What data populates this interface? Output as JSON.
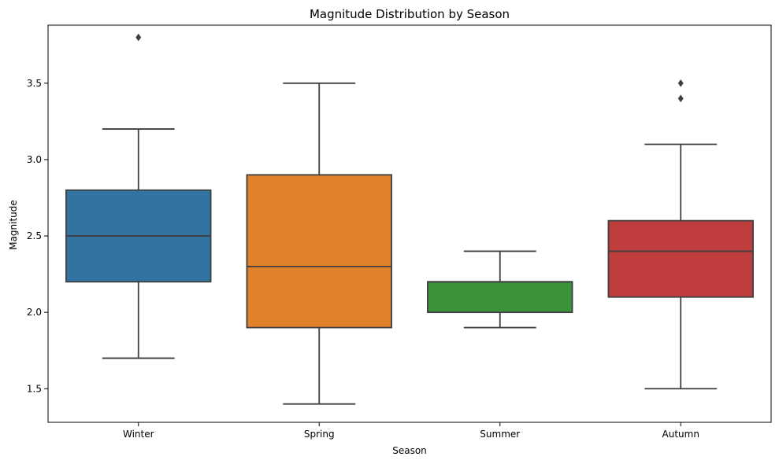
{
  "chart_data": {
    "type": "box",
    "title": "Magnitude Distribution by Season",
    "xlabel": "Season",
    "ylabel": "Magnitude",
    "ylim": [
      1.28,
      3.88
    ],
    "yticks": [
      1.5,
      2.0,
      2.5,
      3.0,
      3.5
    ],
    "ytick_labels": [
      "1.5",
      "2.0",
      "2.5",
      "3.0",
      "3.5"
    ],
    "grid": false,
    "line_color": "#3f3f3f",
    "categories": [
      "Winter",
      "Spring",
      "Summer",
      "Autumn"
    ],
    "boxes": [
      {
        "category": "Winter",
        "whisker_low": 1.7,
        "q1": 2.2,
        "median": 2.5,
        "q3": 2.8,
        "whisker_high": 3.2,
        "outliers": [
          3.8
        ],
        "color": "#3274a1"
      },
      {
        "category": "Spring",
        "whisker_low": 1.4,
        "q1": 1.9,
        "median": 2.3,
        "q3": 2.9,
        "whisker_high": 3.5,
        "outliers": [],
        "color": "#e1812c"
      },
      {
        "category": "Summer",
        "whisker_low": 1.9,
        "q1": 2.0,
        "median": 2.2,
        "q3": 2.2,
        "whisker_high": 2.4,
        "outliers": [],
        "color": "#3a923a"
      },
      {
        "category": "Autumn",
        "whisker_low": 1.5,
        "q1": 2.1,
        "median": 2.4,
        "q3": 2.6,
        "whisker_high": 3.1,
        "outliers": [
          3.4,
          3.5
        ],
        "color": "#c03d3e"
      }
    ]
  }
}
